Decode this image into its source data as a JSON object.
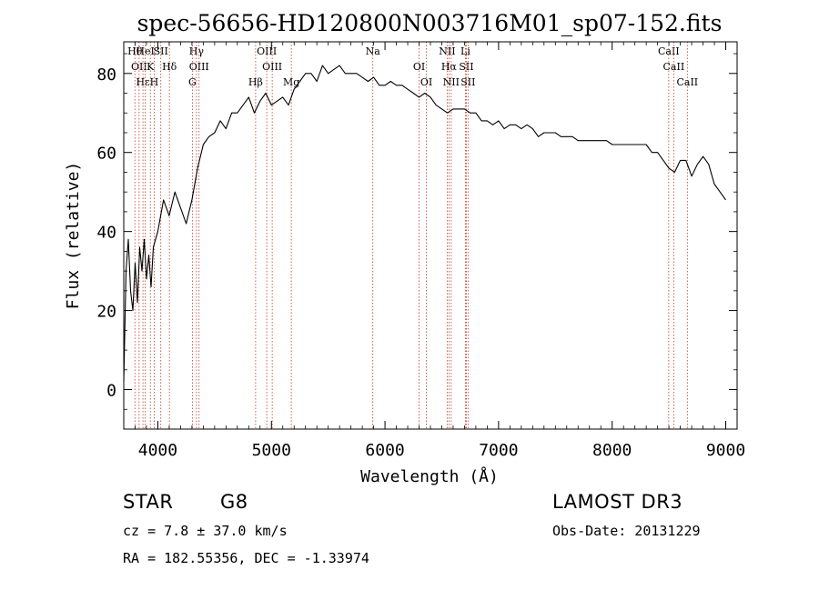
{
  "title": "spec-56656-HD120800N003716M01_sp07-152.fits",
  "chart_data": {
    "type": "line",
    "xlabel": "Wavelength (Å)",
    "ylabel": "Flux (relative)",
    "xlim": [
      3700,
      9100
    ],
    "ylim": [
      -10,
      88
    ],
    "xticks": [
      4000,
      5000,
      6000,
      7000,
      8000,
      9000
    ],
    "yticks": [
      0,
      20,
      40,
      60,
      80
    ],
    "series": [
      {
        "x": [
          3700,
          3720,
          3740,
          3760,
          3780,
          3800,
          3820,
          3840,
          3860,
          3880,
          3900,
          3920,
          3940,
          3960,
          3980,
          4000,
          4050,
          4100,
          4150,
          4200,
          4250,
          4300,
          4350,
          4400,
          4450,
          4500,
          4550,
          4600,
          4650,
          4700,
          4750,
          4800,
          4850,
          4900,
          4950,
          5000,
          5050,
          5100,
          5150,
          5200,
          5250,
          5300,
          5350,
          5400,
          5450,
          5500,
          5550,
          5600,
          5650,
          5700,
          5750,
          5800,
          5850,
          5900,
          5950,
          6000,
          6050,
          6100,
          6150,
          6200,
          6250,
          6300,
          6350,
          6400,
          6450,
          6500,
          6550,
          6600,
          6650,
          6700,
          6750,
          6800,
          6850,
          6900,
          6950,
          7000,
          7050,
          7100,
          7150,
          7200,
          7250,
          7300,
          7350,
          7400,
          7450,
          7500,
          7550,
          7600,
          7650,
          7700,
          7750,
          7800,
          7850,
          7900,
          7950,
          8000,
          8050,
          8100,
          8150,
          8200,
          8250,
          8300,
          8350,
          8400,
          8450,
          8500,
          8550,
          8600,
          8650,
          8700,
          8750,
          8800,
          8850,
          8900,
          8950,
          9000
        ],
        "y": [
          2,
          30,
          38,
          25,
          20,
          32,
          22,
          36,
          30,
          38,
          28,
          34,
          26,
          36,
          38,
          40,
          48,
          44,
          50,
          46,
          42,
          48,
          56,
          62,
          64,
          65,
          68,
          66,
          70,
          70,
          72,
          74,
          70,
          73,
          75,
          72,
          73,
          74,
          72,
          76,
          78,
          80,
          80,
          78,
          82,
          80,
          81,
          82,
          80,
          80,
          80,
          79,
          78,
          79,
          77,
          77,
          78,
          77,
          77,
          76,
          75,
          74,
          75,
          74,
          72,
          71,
          70,
          71,
          71,
          71,
          70,
          70,
          68,
          68,
          67,
          68,
          66,
          67,
          67,
          66,
          67,
          66,
          64,
          65,
          65,
          65,
          64,
          64,
          64,
          63,
          63,
          63,
          63,
          63,
          63,
          62,
          62,
          62,
          62,
          62,
          62,
          62,
          60,
          60,
          58,
          56,
          55,
          58,
          58,
          54,
          57,
          59,
          57,
          52,
          50,
          48
        ]
      }
    ],
    "lines": [
      {
        "wl": 3798,
        "label": "Hθ"
      },
      {
        "wl": 3835,
        "label": "OII"
      },
      {
        "wl": 3869,
        "label": "Hε"
      },
      {
        "wl": 3889,
        "label": "HeI"
      },
      {
        "wl": 3934,
        "label": "K"
      },
      {
        "wl": 3968,
        "label": "H"
      },
      {
        "wl": 4026,
        "label": "SII"
      },
      {
        "wl": 4102,
        "label": "Hδ"
      },
      {
        "wl": 4304,
        "label": "G"
      },
      {
        "wl": 4340,
        "label": "Hγ"
      },
      {
        "wl": 4363,
        "label": "OIII"
      },
      {
        "wl": 4861,
        "label": "Hβ"
      },
      {
        "wl": 4959,
        "label": "OIII"
      },
      {
        "wl": 5007,
        "label": "OIII"
      },
      {
        "wl": 5175,
        "label": "Mg"
      },
      {
        "wl": 5893,
        "label": "Na"
      },
      {
        "wl": 6300,
        "label": "OI"
      },
      {
        "wl": 6364,
        "label": "OI"
      },
      {
        "wl": 6548,
        "label": "NII"
      },
      {
        "wl": 6563,
        "label": "Hα"
      },
      {
        "wl": 6583,
        "label": "NII"
      },
      {
        "wl": 6708,
        "label": "Li"
      },
      {
        "wl": 6716,
        "label": "SII"
      },
      {
        "wl": 6731,
        "label": "SII"
      },
      {
        "wl": 8498,
        "label": "CaII"
      },
      {
        "wl": 8542,
        "label": "CaII"
      },
      {
        "wl": 8662,
        "label": "CaII"
      }
    ]
  },
  "info": {
    "class_label": "STAR",
    "subclass": "G8",
    "survey": "LAMOST DR3",
    "cz": "cz = 7.8 ± 37.0 km/s",
    "obs_date": "Obs-Date: 20131229",
    "coords": "RA = 182.55356, DEC =  -1.33974"
  }
}
